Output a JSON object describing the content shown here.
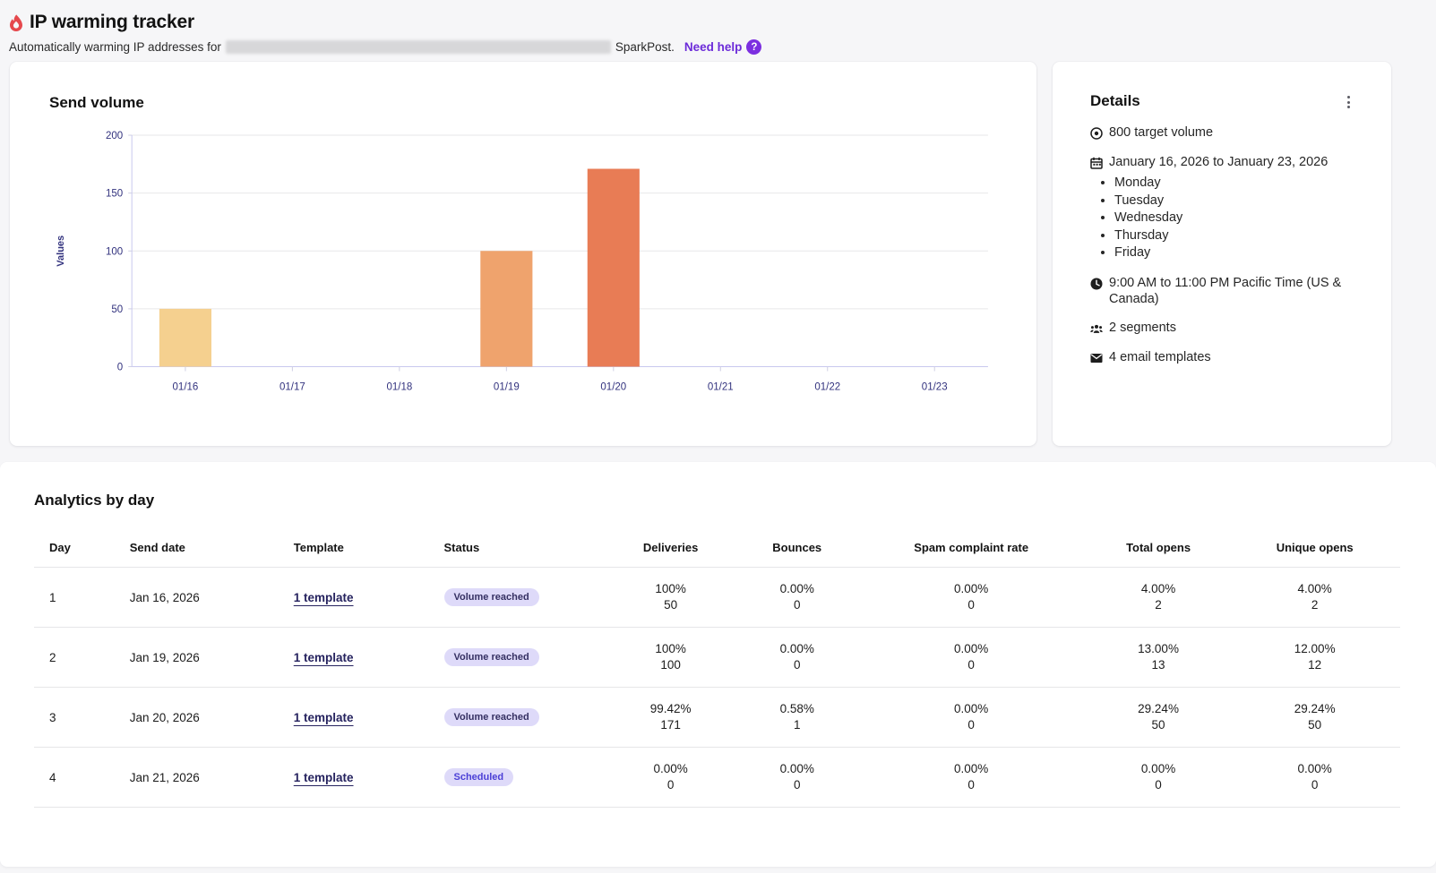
{
  "header": {
    "title": "IP warming tracker",
    "subtitle_prefix": "Automatically warming IP addresses for",
    "subtitle_suffix": "SparkPost.",
    "help_link": "Need help"
  },
  "chart_card": {
    "title": "Send volume"
  },
  "chart_data": {
    "type": "bar",
    "title": "Send volume",
    "categories": [
      "01/16",
      "01/17",
      "01/18",
      "01/19",
      "01/20",
      "01/21",
      "01/22",
      "01/23"
    ],
    "values": [
      50,
      0,
      0,
      100,
      171,
      0,
      0,
      0
    ],
    "bar_colors": [
      "#f5d08f",
      null,
      null,
      "#efa36d",
      "#e87c55",
      null,
      null,
      null
    ],
    "xlabel": "",
    "ylabel": "Values",
    "ylim": [
      0,
      200
    ],
    "yticks": [
      0,
      50,
      100,
      150,
      200
    ],
    "grid": true,
    "legend": false
  },
  "details": {
    "title": "Details",
    "target_volume": "800 target volume",
    "date_range": "January 16, 2026 to January 23, 2026",
    "days": [
      "Monday",
      "Tuesday",
      "Wednesday",
      "Thursday",
      "Friday"
    ],
    "time_range": "9:00 AM to 11:00 PM Pacific Time (US & Canada)",
    "segments": "2 segments",
    "templates": "4 email templates"
  },
  "analytics": {
    "title": "Analytics by day",
    "columns": {
      "day": "Day",
      "send_date": "Send date",
      "template": "Template",
      "status": "Status",
      "deliveries": "Deliveries",
      "bounces": "Bounces",
      "spam": "Spam complaint rate",
      "total_opens": "Total opens",
      "unique_opens": "Unique opens"
    },
    "rows": [
      {
        "day": "1",
        "send_date": "Jan 16, 2026",
        "template": "1 template",
        "status": "Volume reached",
        "status_type": "reached",
        "deliveries_pct": "100%",
        "deliveries_n": "50",
        "bounces_pct": "0.00%",
        "bounces_n": "0",
        "spam_pct": "0.00%",
        "spam_n": "0",
        "total_opens_pct": "4.00%",
        "total_opens_n": "2",
        "unique_opens_pct": "4.00%",
        "unique_opens_n": "2"
      },
      {
        "day": "2",
        "send_date": "Jan 19, 2026",
        "template": "1 template",
        "status": "Volume reached",
        "status_type": "reached",
        "deliveries_pct": "100%",
        "deliveries_n": "100",
        "bounces_pct": "0.00%",
        "bounces_n": "0",
        "spam_pct": "0.00%",
        "spam_n": "0",
        "total_opens_pct": "13.00%",
        "total_opens_n": "13",
        "unique_opens_pct": "12.00%",
        "unique_opens_n": "12"
      },
      {
        "day": "3",
        "send_date": "Jan 20, 2026",
        "template": "1 template",
        "status": "Volume reached",
        "status_type": "reached",
        "deliveries_pct": "99.42%",
        "deliveries_n": "171",
        "bounces_pct": "0.58%",
        "bounces_n": "1",
        "spam_pct": "0.00%",
        "spam_n": "0",
        "total_opens_pct": "29.24%",
        "total_opens_n": "50",
        "unique_opens_pct": "29.24%",
        "unique_opens_n": "50"
      },
      {
        "day": "4",
        "send_date": "Jan 21, 2026",
        "template": "1 template",
        "status": "Scheduled",
        "status_type": "scheduled",
        "deliveries_pct": "0.00%",
        "deliveries_n": "0",
        "bounces_pct": "0.00%",
        "bounces_n": "0",
        "spam_pct": "0.00%",
        "spam_n": "0",
        "total_opens_pct": "0.00%",
        "total_opens_n": "0",
        "unique_opens_pct": "0.00%",
        "unique_opens_n": "0"
      }
    ]
  },
  "colors": {
    "flame_red": "#e5484d",
    "accent_purple": "#6c2bd9",
    "help_badge_purple": "#7c2fe0",
    "axis_navy": "#32327e",
    "axis_line": "#c9c9ee",
    "gridline": "#e7e7e9",
    "badge_bg": "#dedaf9",
    "badge_reached_text": "#353062",
    "badge_scheduled_text": "#4b3fd6"
  }
}
